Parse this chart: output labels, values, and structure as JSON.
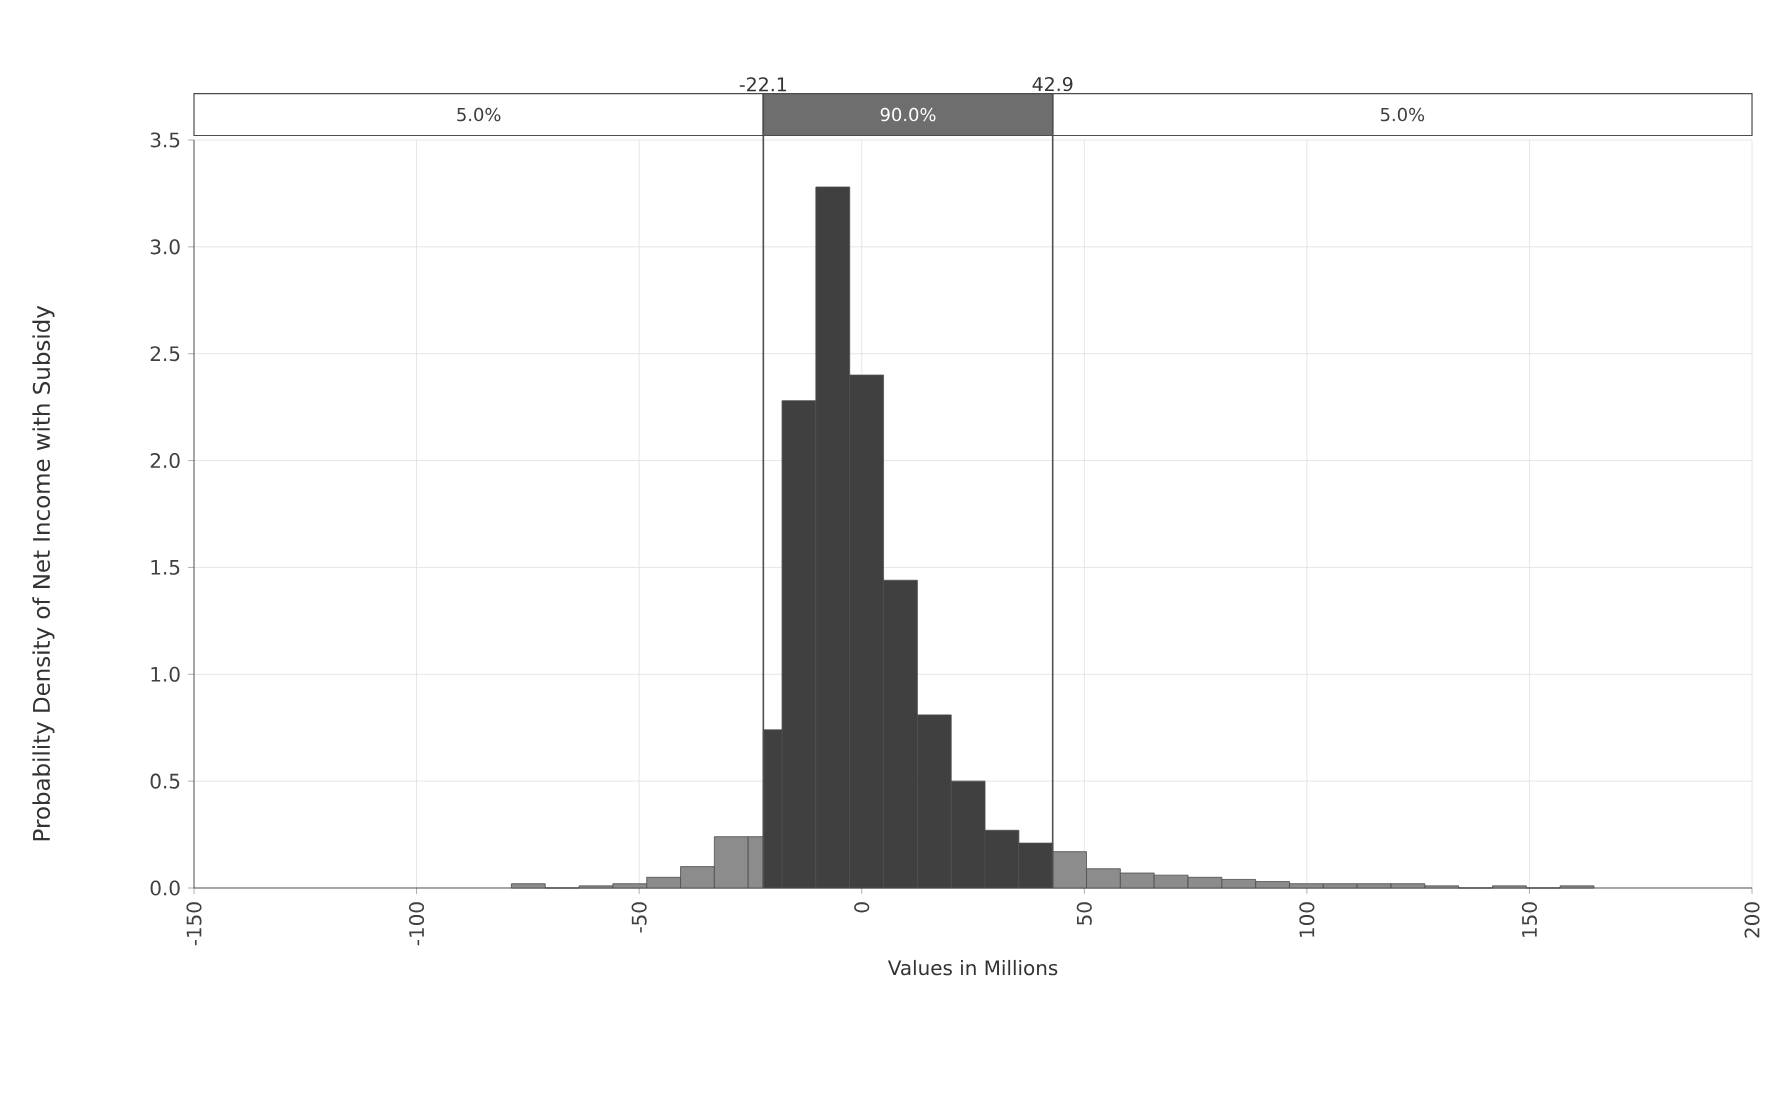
{
  "chart_data": {
    "type": "histogram",
    "xlabel": "Values in Millions",
    "ylabel": "Probability Density of Net Income with Subsidy",
    "bins": [
      -78.7,
      -71.1,
      -63.5,
      -55.9,
      -48.3,
      -40.7,
      -33.1,
      -25.5,
      -22.1,
      -17.9,
      -10.3,
      -2.7,
      4.9,
      12.5,
      20.1,
      27.7,
      35.3,
      42.9,
      50.5,
      58.1,
      65.7,
      73.3,
      80.9,
      88.5,
      96.1,
      103.7,
      111.3,
      118.9,
      126.5,
      134.1,
      141.7,
      149.3,
      156.9,
      164.5
    ],
    "values": [
      0.02,
      0,
      0.01,
      0.02,
      0.05,
      0.1,
      0.24,
      0.24,
      0.74,
      2.28,
      3.28,
      2.4,
      1.44,
      0.81,
      0.5,
      0.27,
      0.21,
      0.17,
      0.09,
      0.07,
      0.06,
      0.05,
      0.04,
      0.03,
      0.02,
      0.02,
      0.02,
      0.02,
      0.01,
      0,
      0.01,
      0,
      0.01
    ],
    "colors": [
      "#8c8c8c",
      "#8c8c8c",
      "#8c8c8c",
      "#8c8c8c",
      "#8c8c8c",
      "#8c8c8c",
      "#8c8c8c",
      "#8c8c8c",
      "#404040",
      "#404040",
      "#404040",
      "#404040",
      "#404040",
      "#404040",
      "#404040",
      "#404040",
      "#404040",
      "#8c8c8c",
      "#8c8c8c",
      "#8c8c8c",
      "#8c8c8c",
      "#8c8c8c",
      "#8c8c8c",
      "#8c8c8c",
      "#8c8c8c",
      "#8c8c8c",
      "#8c8c8c",
      "#8c8c8c",
      "#8c8c8c",
      "#8c8c8c",
      "#8c8c8c",
      "#8c8c8c",
      "#8c8c8c"
    ],
    "xlim": [
      -150,
      200
    ],
    "xticks": [
      -150,
      -100,
      -50,
      0,
      50,
      100,
      150,
      200
    ],
    "ylim": [
      0,
      3.5
    ],
    "yticks": [
      {
        "value": 0,
        "label": "0.0"
      },
      {
        "value": 0.5,
        "label": "0.5"
      },
      {
        "value": 1,
        "label": "1.0"
      },
      {
        "value": 1.5,
        "label": "1.5"
      },
      {
        "value": 2,
        "label": "2.0"
      },
      {
        "value": 2.5,
        "label": "2.5"
      },
      {
        "value": 3,
        "label": "3.0"
      },
      {
        "value": 3.5,
        "label": "3.5"
      }
    ],
    "grid": true,
    "ref_lines": [
      {
        "axis": "x",
        "value": -22.1,
        "label": "-22.1",
        "color": "#505050"
      },
      {
        "axis": "x",
        "value": 42.9,
        "label": "42.9",
        "color": "#505050"
      }
    ],
    "annotations": [
      "5.0%",
      "90.0%",
      "5.0%"
    ]
  }
}
